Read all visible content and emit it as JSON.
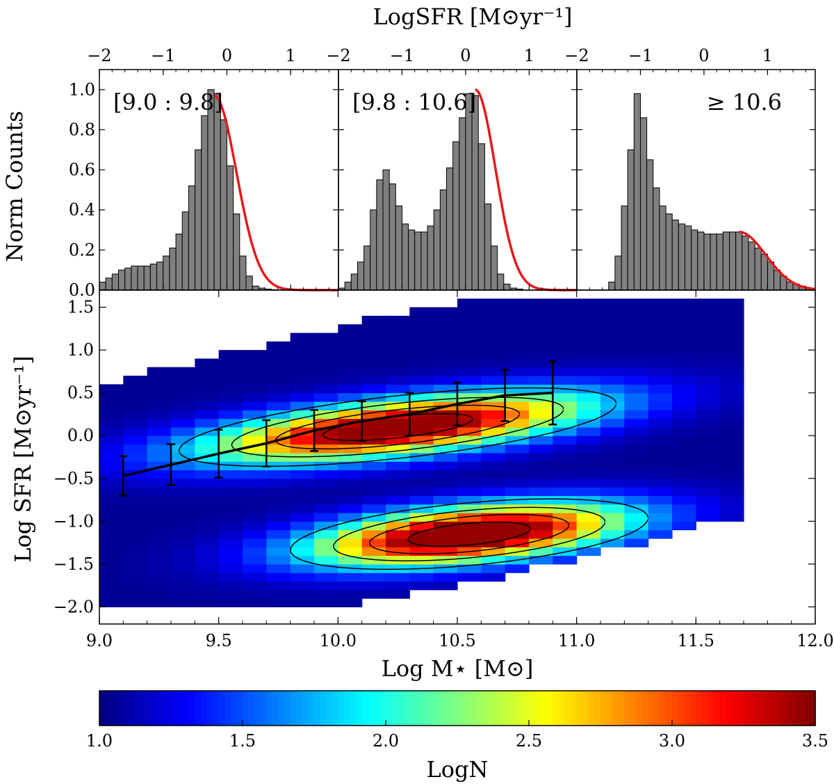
{
  "chart_data": [
    {
      "type": "bar",
      "role": "histogram",
      "xlabel": "LogSFR [M⊙yr⁻¹]",
      "ylabel": "Norm Counts",
      "xlim": [
        -2,
        1.75
      ],
      "ylim": [
        0,
        1.1
      ],
      "x_ticks": [
        "−2",
        "−1",
        "0",
        "1"
      ],
      "y_ticks": [
        "0.0",
        "0.2",
        "0.4",
        "0.6",
        "0.8",
        "1.0"
      ],
      "panels": [
        {
          "label": "[9.0 : 9.8]",
          "bin_start": -2.0,
          "bin_width": 0.1,
          "values": [
            0.04,
            0.06,
            0.08,
            0.1,
            0.11,
            0.12,
            0.12,
            0.12,
            0.13,
            0.14,
            0.17,
            0.21,
            0.28,
            0.39,
            0.52,
            0.7,
            0.87,
            1.0,
            0.98,
            0.85,
            0.62,
            0.38,
            0.17,
            0.07,
            0.02,
            0.01,
            0.005,
            0.002,
            0,
            0,
            0,
            0,
            0,
            0,
            0,
            0,
            0,
            0
          ],
          "fit": {
            "x0": -0.2,
            "sigma": 0.35,
            "peak": 0.97
          }
        },
        {
          "label": "[9.8 : 10.6]",
          "bin_start": -2.0,
          "bin_width": 0.1,
          "values": [
            0.01,
            0.04,
            0.08,
            0.14,
            0.22,
            0.4,
            0.55,
            0.6,
            0.53,
            0.42,
            0.33,
            0.3,
            0.29,
            0.29,
            0.32,
            0.4,
            0.5,
            0.61,
            0.74,
            0.86,
            0.98,
            0.97,
            0.73,
            0.43,
            0.22,
            0.08,
            0.03,
            0.01,
            0.005,
            0,
            0,
            0,
            0,
            0,
            0,
            0,
            0,
            0
          ],
          "fit": {
            "x0": 0.15,
            "sigma": 0.32,
            "peak": 1.0
          }
        },
        {
          "label": "≥ 10.6",
          "bin_start": -2.0,
          "bin_width": 0.1,
          "values": [
            0,
            0,
            0,
            0,
            0,
            0.04,
            0.17,
            0.42,
            0.7,
            0.98,
            0.86,
            0.65,
            0.51,
            0.42,
            0.38,
            0.35,
            0.33,
            0.32,
            0.3,
            0.29,
            0.28,
            0.28,
            0.28,
            0.29,
            0.29,
            0.29,
            0.27,
            0.24,
            0.21,
            0.18,
            0.14,
            0.1,
            0.07,
            0.04,
            0.03,
            0.02,
            0.01,
            0.005
          ],
          "fit": {
            "x0": 0.55,
            "sigma": 0.42,
            "peak": 0.29
          }
        }
      ]
    },
    {
      "type": "heatmap",
      "xlabel": "Log M⋆ [M⊙]",
      "ylabel": "Log SFR [M⊙yr⁻¹]",
      "xlim": [
        9.0,
        12.0
      ],
      "ylim": [
        -2.2,
        1.7
      ],
      "x_ticks": [
        "9.0",
        "9.5",
        "10.0",
        "10.5",
        "11.0",
        "11.5",
        "12.0"
      ],
      "y_ticks": [
        "−2.0",
        "−1.5",
        "−1.0",
        "−0.5",
        "0.0",
        "0.5",
        "1.0",
        "1.5"
      ],
      "bin_dx": 0.1,
      "bin_dy": 0.1,
      "components": [
        {
          "x0": 10.25,
          "y0": 0.1,
          "sx": 0.55,
          "sy": 0.22,
          "slope": 0.3,
          "amp": 2.78
        },
        {
          "x0": 10.55,
          "y0": -1.15,
          "sx": 0.45,
          "sy": 0.22,
          "slope": 0.25,
          "amp": 2.95
        }
      ],
      "background": 1.05,
      "ridge_x": [
        9.0,
        9.5,
        10.0,
        10.5,
        11.0
      ],
      "ridge_y": [
        -0.55,
        -0.15,
        0.1,
        0.35,
        0.55
      ],
      "min_logN": 1.05,
      "contour_levels": [
        1.3,
        1.8,
        2.3,
        2.6,
        2.8,
        3.0
      ],
      "errorbars": {
        "x": [
          9.1,
          9.3,
          9.5,
          9.7,
          9.9,
          10.1,
          10.3,
          10.5,
          10.7,
          10.9
        ],
        "y": [
          -0.47,
          -0.34,
          -0.21,
          -0.09,
          0.06,
          0.17,
          0.25,
          0.37,
          0.47,
          0.5
        ],
        "err": [
          0.23,
          0.24,
          0.28,
          0.27,
          0.24,
          0.23,
          0.25,
          0.25,
          0.3,
          0.37
        ]
      }
    },
    {
      "type": "colorbar",
      "label": "LogN",
      "range": [
        1.0,
        3.5
      ],
      "ticks": [
        "1.0",
        "1.5",
        "2.0",
        "2.5",
        "3.0",
        "3.5"
      ],
      "colormap": "jet"
    }
  ]
}
